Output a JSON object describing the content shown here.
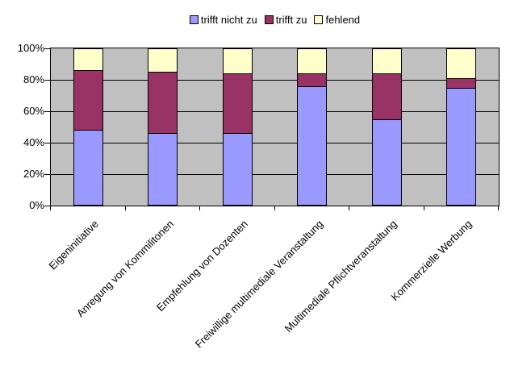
{
  "chart_data": {
    "type": "bar",
    "stacked": true,
    "stacking": "percent",
    "categories": [
      "Eigeninitiative",
      "Anregung von Kommilitonen",
      "Empfehlung von Dozenten",
      "Freiwillige multimediale Veranstaltung",
      "Multimediale Pflichtveranstaltung",
      "Kommerzielle Werbung"
    ],
    "series": [
      {
        "name": "trifft nicht zu",
        "color": "#9999ff",
        "values": [
          48,
          46,
          46,
          76,
          55,
          75
        ]
      },
      {
        "name": "trifft zu",
        "color": "#993366",
        "values": [
          38,
          39,
          38,
          8,
          29,
          6
        ]
      },
      {
        "name": "fehlend",
        "color": "#ffffcc",
        "values": [
          14,
          15,
          16,
          16,
          16,
          19
        ]
      }
    ],
    "ylim": [
      0,
      100
    ],
    "yticks": [
      "0%",
      "20%",
      "40%",
      "60%",
      "80%",
      "100%"
    ],
    "grid": true,
    "gridline_color": "#000000",
    "plot_background": "#c0c0c0",
    "bar_border_color": "#000000",
    "legend_position": "top"
  }
}
